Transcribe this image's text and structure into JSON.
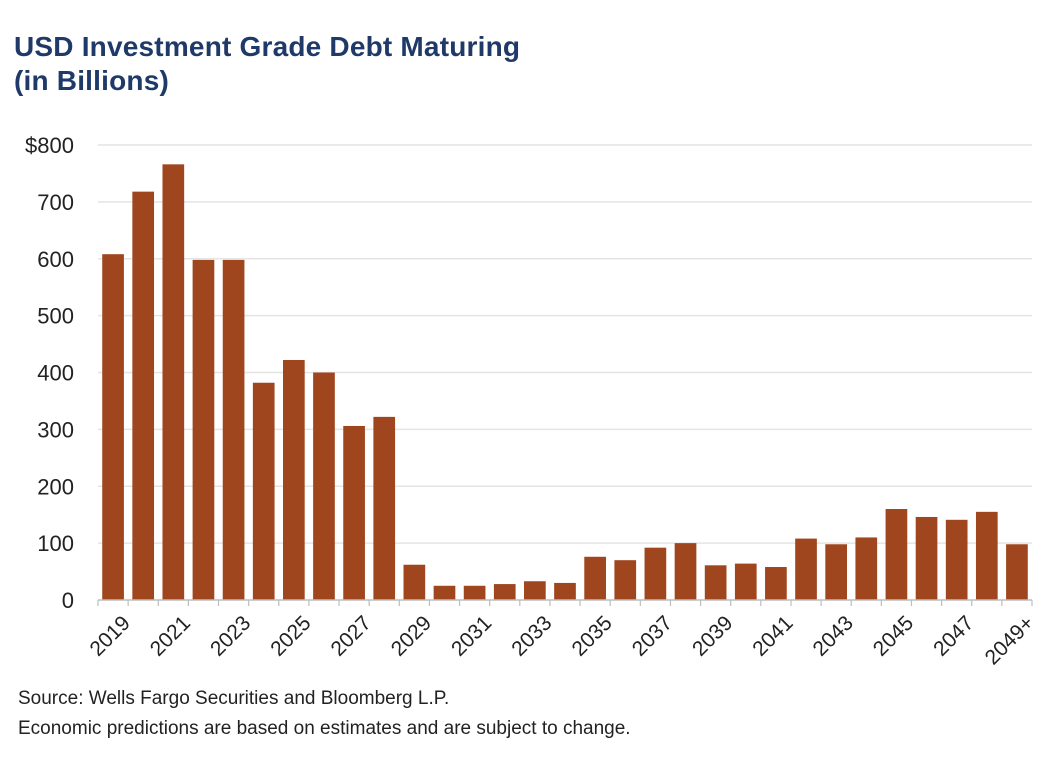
{
  "title_lines": [
    "USD Investment Grade Debt Maturing",
    "(in Billions)"
  ],
  "notes": [
    "Source: Wells Fargo Securities and Bloomberg L.P.",
    "Economic predictions are based on estimates and are subject to change."
  ],
  "colors": {
    "bar": "#a0461f",
    "title": "#1f3a68",
    "grid": "#e4e4e4"
  },
  "chart_data": {
    "type": "bar",
    "title": "USD Investment Grade Debt Maturing (in Billions)",
    "xlabel": "",
    "ylabel": "",
    "ylim": [
      0,
      800
    ],
    "yticks": [
      0,
      100,
      200,
      300,
      400,
      500,
      600,
      700,
      800
    ],
    "ytick_labels": [
      "0",
      "100",
      "200",
      "300",
      "400",
      "500",
      "600",
      "700",
      "$800"
    ],
    "grid": true,
    "legend": "none",
    "categories": [
      "2019",
      "2020",
      "2021",
      "2022",
      "2023",
      "2024",
      "2025",
      "2026",
      "2027",
      "2028",
      "2029",
      "2030",
      "2031",
      "2032",
      "2033",
      "2034",
      "2035",
      "2036",
      "2037",
      "2038",
      "2039",
      "2040",
      "2041",
      "2042",
      "2043",
      "2044",
      "2045",
      "2046",
      "2047",
      "2048",
      "2049+"
    ],
    "xtick_labels": [
      "2019",
      "",
      "2021",
      "",
      "2023",
      "",
      "2025",
      "",
      "2027",
      "",
      "2029",
      "",
      "2031",
      "",
      "2033",
      "",
      "2035",
      "",
      "2037",
      "",
      "2039",
      "",
      "2041",
      "",
      "2043",
      "",
      "2045",
      "",
      "2047",
      "",
      "2049+"
    ],
    "values": [
      608,
      718,
      766,
      598,
      598,
      382,
      422,
      400,
      306,
      322,
      62,
      25,
      25,
      28,
      33,
      30,
      76,
      70,
      92,
      100,
      61,
      64,
      58,
      108,
      98,
      110,
      160,
      146,
      141,
      155,
      98
    ]
  }
}
